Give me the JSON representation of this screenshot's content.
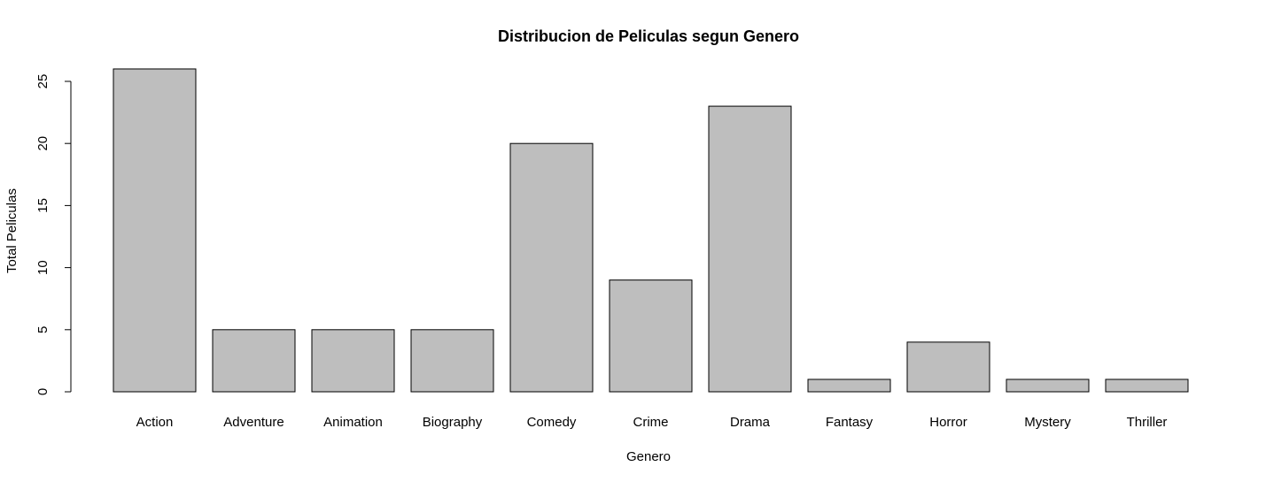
{
  "chart_data": {
    "type": "bar",
    "title": "Distribucion de Peliculas segun Genero",
    "xlabel": "Genero",
    "ylabel": "Total Peliculas",
    "categories": [
      "Action",
      "Adventure",
      "Animation",
      "Biography",
      "Comedy",
      "Crime",
      "Drama",
      "Fantasy",
      "Horror",
      "Mystery",
      "Thriller"
    ],
    "values": [
      26,
      5,
      5,
      5,
      20,
      9,
      23,
      1,
      4,
      1,
      1
    ],
    "ylim": [
      0,
      26
    ],
    "yticks": [
      0,
      5,
      10,
      15,
      20,
      25
    ],
    "bar_color": "#bebebe",
    "grid": false,
    "legend": "none"
  }
}
